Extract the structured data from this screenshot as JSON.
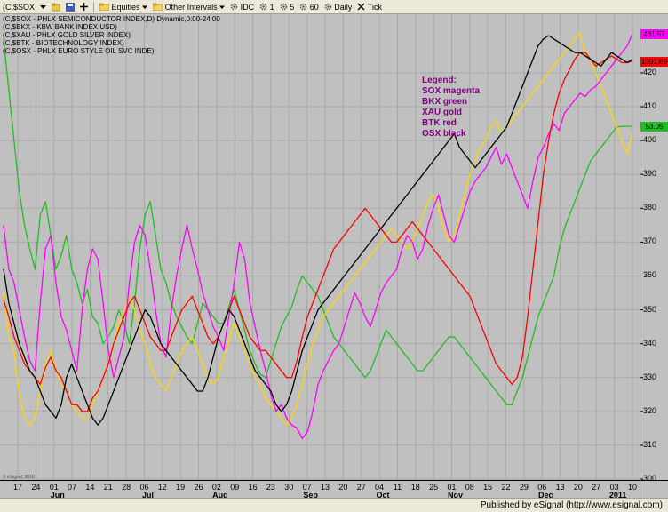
{
  "toolbar": {
    "symbol": "(C,$SOX",
    "equities_label": "Equities",
    "intervals_label": "Other Intervals",
    "idc_label": "IDC",
    "interval_1": "1",
    "interval_5": "5",
    "interval_60": "60",
    "daily_label": "Daily",
    "tick_label": "Tick"
  },
  "series_headers": [
    "(C,$SOX - PHLX SEMICONDUCTOR INDEX,D) Dynamic,0:00-24:00",
    "(C,$BKX - KBW BANK INDEX USD)",
    "(C,$XAU - PHLX GOLD SILVER INDEX)",
    "(C,$BTK - BIOTECHNOLOGY INDEX)",
    "(C,$OSX - PHLX EURO STYLE OIL SVC INDE)"
  ],
  "legend": {
    "title": "Legend:",
    "items": [
      "SOX magenta",
      "BKX green",
      "XAU gold",
      "BTK red",
      "OSX black"
    ]
  },
  "watermark": "© eSignal, 2010",
  "status_bar": "Published by eSignal (http://www.esignal.com)",
  "colors": {
    "background": "#c0c0c0",
    "grid": "#a8a8a8",
    "sox": "#ff00ff",
    "bkx": "#22bb22",
    "xau": "#ffd700",
    "btk": "#ff0000",
    "osx": "#000000"
  },
  "chart_data": {
    "type": "line",
    "title": "",
    "xlabel": "",
    "ylabel": "",
    "ylim": [
      300,
      436
    ],
    "y_ticks": [
      300,
      310,
      320,
      330,
      340,
      350,
      360,
      370,
      380,
      390,
      400,
      410,
      420
    ],
    "x_ticks": [
      {
        "day": "17",
        "month": ""
      },
      {
        "day": "24",
        "month": ""
      },
      {
        "day": "01",
        "month": "Jun"
      },
      {
        "day": "07",
        "month": ""
      },
      {
        "day": "14",
        "month": ""
      },
      {
        "day": "21",
        "month": ""
      },
      {
        "day": "28",
        "month": ""
      },
      {
        "day": "06",
        "month": "Jul"
      },
      {
        "day": "12",
        "month": ""
      },
      {
        "day": "19",
        "month": ""
      },
      {
        "day": "26",
        "month": ""
      },
      {
        "day": "02",
        "month": "Aug"
      },
      {
        "day": "09",
        "month": ""
      },
      {
        "day": "16",
        "month": ""
      },
      {
        "day": "23",
        "month": ""
      },
      {
        "day": "30",
        "month": ""
      },
      {
        "day": "07",
        "month": "Sep"
      },
      {
        "day": "13",
        "month": ""
      },
      {
        "day": "20",
        "month": ""
      },
      {
        "day": "27",
        "month": ""
      },
      {
        "day": "04",
        "month": "Oct"
      },
      {
        "day": "11",
        "month": ""
      },
      {
        "day": "18",
        "month": ""
      },
      {
        "day": "25",
        "month": ""
      },
      {
        "day": "01",
        "month": "Nov"
      },
      {
        "day": "08",
        "month": ""
      },
      {
        "day": "15",
        "month": ""
      },
      {
        "day": "22",
        "month": ""
      },
      {
        "day": "29",
        "month": ""
      },
      {
        "day": "06",
        "month": "Dec"
      },
      {
        "day": "13",
        "month": ""
      },
      {
        "day": "20",
        "month": ""
      },
      {
        "day": "27",
        "month": ""
      },
      {
        "day": "03",
        "month": "2011"
      },
      {
        "day": "10",
        "month": ""
      }
    ],
    "last_values": [
      {
        "series": "SOX",
        "label": "431.57",
        "value": 431.57
      },
      {
        "series": "BTK",
        "label": "1301.69",
        "value": 423.5
      },
      {
        "series": "BKX",
        "label": "53.05",
        "value": 404.2
      }
    ],
    "series": [
      {
        "key": "sox",
        "values": [
          375,
          362,
          358,
          350,
          342,
          335,
          332,
          352,
          368,
          372,
          358,
          348,
          344,
          338,
          332,
          350,
          362,
          368,
          365,
          352,
          338,
          330,
          336,
          342,
          358,
          370,
          375,
          372,
          362,
          350,
          340,
          336,
          350,
          360,
          368,
          375,
          368,
          362,
          355,
          350,
          345,
          342,
          338,
          348,
          358,
          370,
          365,
          352,
          345,
          338,
          332,
          325,
          320,
          322,
          318,
          316,
          315,
          312,
          314,
          320,
          328,
          332,
          335,
          338,
          340,
          345,
          350,
          355,
          352,
          348,
          345,
          350,
          355,
          358,
          360,
          362,
          368,
          372,
          370,
          365,
          368,
          375,
          380,
          384,
          378,
          372,
          370,
          375,
          380,
          385,
          388,
          390,
          392,
          395,
          398,
          393,
          396,
          392,
          388,
          384,
          380,
          388,
          395,
          398,
          402,
          405,
          403,
          408,
          410,
          412,
          414,
          413,
          415,
          416,
          418,
          420,
          422,
          424,
          426,
          428,
          431.57
        ]
      },
      {
        "key": "bkx",
        "values": [
          430,
          415,
          400,
          385,
          375,
          368,
          362,
          378,
          382,
          372,
          362,
          366,
          372,
          362,
          358,
          352,
          356,
          348,
          346,
          340,
          342,
          345,
          350,
          346,
          340,
          352,
          368,
          378,
          382,
          372,
          362,
          358,
          352,
          348,
          345,
          342,
          340,
          346,
          352,
          350,
          348,
          346,
          346,
          351,
          356,
          350,
          344,
          338,
          334,
          331,
          330,
          335,
          340,
          345,
          348,
          351,
          356,
          360,
          358,
          356,
          354,
          350,
          346,
          342,
          340,
          338,
          336,
          334,
          332,
          330,
          332,
          336,
          340,
          344,
          342,
          340,
          338,
          336,
          334,
          332,
          332,
          334,
          336,
          338,
          340,
          342,
          342,
          340,
          338,
          336,
          334,
          332,
          330,
          328,
          326,
          324,
          322,
          322,
          326,
          330,
          336,
          342,
          348,
          352,
          356,
          360,
          368,
          374,
          378,
          382,
          386,
          390,
          394,
          396,
          398,
          400,
          402,
          404,
          404.2,
          404.2,
          404.2
        ]
      },
      {
        "key": "xau",
        "values": [
          355,
          342,
          338,
          325,
          318,
          316,
          318,
          326,
          334,
          338,
          332,
          328,
          326,
          322,
          320,
          318,
          318,
          322,
          326,
          330,
          334,
          340,
          346,
          350,
          354,
          350,
          344,
          340,
          334,
          330,
          328,
          326,
          330,
          334,
          338,
          340,
          342,
          338,
          334,
          330,
          328,
          330,
          336,
          341,
          346,
          342,
          338,
          334,
          330,
          328,
          324,
          322,
          320,
          318,
          316,
          318,
          322,
          328,
          334,
          340,
          344,
          348,
          350,
          352,
          354,
          356,
          358,
          360,
          362,
          364,
          366,
          368,
          370,
          372,
          374,
          372,
          370,
          368,
          370,
          374,
          378,
          382,
          384,
          380,
          374,
          370,
          372,
          378,
          384,
          390,
          394,
          398,
          400,
          404,
          406,
          402,
          404,
          406,
          408,
          410,
          412,
          414,
          416,
          418,
          420,
          422,
          424,
          426,
          428,
          430,
          432,
          426,
          424,
          420,
          416,
          412,
          408,
          404,
          400,
          396,
          402
        ]
      },
      {
        "key": "btk",
        "values": [
          353,
          348,
          342,
          338,
          334,
          332,
          330,
          328,
          333,
          336,
          332,
          330,
          326,
          322,
          322,
          320,
          320,
          324,
          326,
          330,
          334,
          340,
          344,
          348,
          352,
          354,
          350,
          346,
          342,
          340,
          338,
          338,
          342,
          346,
          350,
          352,
          354,
          350,
          346,
          342,
          340,
          342,
          346,
          350,
          354,
          350,
          346,
          342,
          340,
          338,
          338,
          336,
          334,
          332,
          330,
          330,
          335,
          342,
          348,
          352,
          356,
          360,
          364,
          368,
          370,
          372,
          374,
          376,
          378,
          380,
          378,
          376,
          374,
          372,
          370,
          370,
          372,
          374,
          376,
          374,
          372,
          370,
          368,
          366,
          364,
          362,
          360,
          358,
          356,
          354,
          350,
          346,
          342,
          338,
          334,
          332,
          330,
          328,
          330,
          336,
          348,
          362,
          376,
          390,
          400,
          408,
          414,
          418,
          421,
          424,
          426,
          426,
          424,
          422,
          423,
          424,
          425,
          424,
          423,
          423,
          423.5
        ]
      },
      {
        "key": "osx",
        "values": [
          362,
          352,
          346,
          340,
          336,
          332,
          330,
          326,
          322,
          320,
          318,
          322,
          330,
          334,
          330,
          326,
          322,
          318,
          316,
          318,
          322,
          326,
          330,
          334,
          338,
          342,
          346,
          350,
          348,
          344,
          340,
          338,
          336,
          334,
          332,
          330,
          328,
          326,
          326,
          330,
          336,
          342,
          346,
          350,
          348,
          344,
          340,
          336,
          332,
          330,
          328,
          326,
          322,
          320,
          322,
          326,
          332,
          338,
          342,
          346,
          350,
          352,
          354,
          356,
          358,
          360,
          362,
          364,
          366,
          368,
          370,
          372,
          374,
          376,
          378,
          380,
          382,
          384,
          386,
          388,
          390,
          392,
          394,
          396,
          398,
          400,
          402,
          398,
          396,
          394,
          392,
          394,
          396,
          398,
          400,
          402,
          404,
          408,
          412,
          416,
          420,
          424,
          428,
          430,
          431,
          430,
          429,
          428,
          427,
          426,
          426,
          425,
          424,
          423,
          422,
          424,
          426,
          425,
          424,
          423,
          424
        ]
      }
    ]
  }
}
